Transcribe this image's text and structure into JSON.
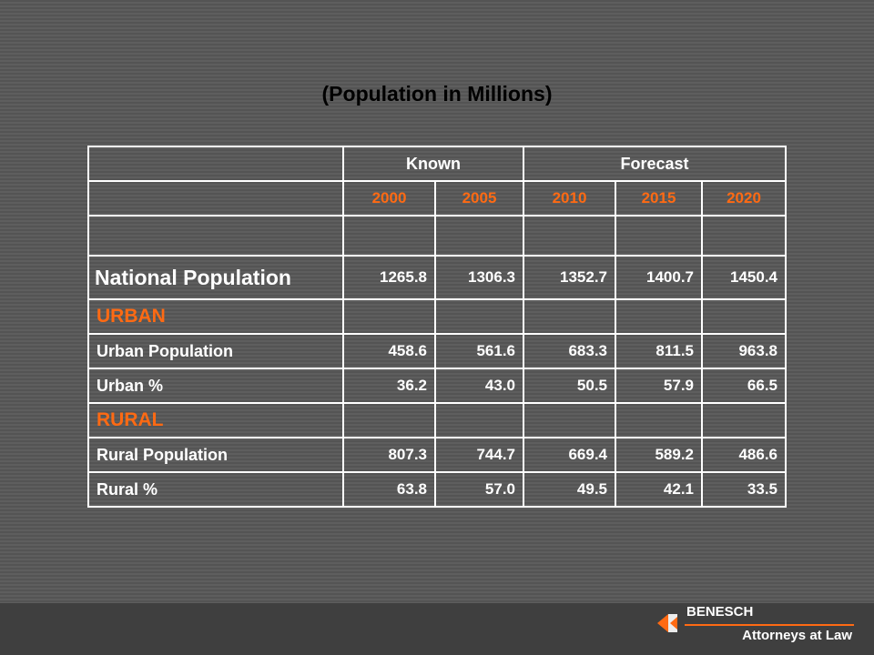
{
  "title": "(Population in Millions)",
  "header": {
    "corner": "",
    "known": "Known",
    "forecast": "Forecast"
  },
  "years": [
    "2000",
    "2005",
    "2010",
    "2015",
    "2020"
  ],
  "rows": {
    "national": {
      "label": "National Population",
      "values": [
        "1265.8",
        "1306.3",
        "1352.7",
        "1400.7",
        "1450.4"
      ]
    },
    "urban_heading": "URBAN",
    "urban_population": {
      "label": "Urban Population",
      "values": [
        "458.6",
        "561.6",
        "683.3",
        "811.5",
        "963.8"
      ]
    },
    "urban_pct": {
      "label": "Urban %",
      "values": [
        "36.2",
        "43.0",
        "50.5",
        "57.9",
        "66.5"
      ]
    },
    "rural_heading": "RURAL",
    "rural_population": {
      "label": "Rural Population",
      "values": [
        "807.3",
        "744.7",
        "669.4",
        "589.2",
        "486.6"
      ]
    },
    "rural_pct": {
      "label": "Rural %",
      "values": [
        "63.8",
        "57.0",
        "49.5",
        "42.1",
        "33.5"
      ]
    }
  },
  "footer": {
    "firm": "BENESCH",
    "tagline": "Attorneys at Law"
  },
  "colors": {
    "accent": "#ff6a13",
    "text": "#ffffff",
    "background": "#5a5a5a"
  }
}
